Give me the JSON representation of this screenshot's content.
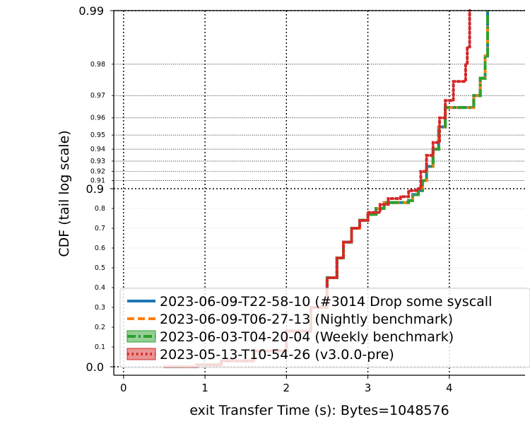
{
  "chart_data": {
    "type": "line",
    "xlabel": "exit Transfer Time (s): Bytes=1048576",
    "ylabel": "CDF (tail log scale)",
    "xlim": [
      -0.12,
      4.93
    ],
    "y_scale": "tail-log",
    "grid": "major dotted, minor dotted on tail",
    "legend_position": "bottom",
    "x_ticks": [
      {
        "value": 0,
        "label": "0"
      },
      {
        "value": 1,
        "label": "1"
      },
      {
        "value": 2,
        "label": "2"
      },
      {
        "value": 3,
        "label": "3"
      },
      {
        "value": 4,
        "label": "4"
      }
    ],
    "y_major_ticks": [
      {
        "value": 0.0,
        "label": "0.0"
      },
      {
        "value": 0.9,
        "label": "0.9"
      },
      {
        "value": 0.99,
        "label": "0.99"
      }
    ],
    "y_minor_ticks": [
      {
        "value": 0.1,
        "label": "0.1"
      },
      {
        "value": 0.2,
        "label": "0.2"
      },
      {
        "value": 0.3,
        "label": "0.3"
      },
      {
        "value": 0.4,
        "label": "0.4"
      },
      {
        "value": 0.5,
        "label": "0.5"
      },
      {
        "value": 0.6,
        "label": "0.6"
      },
      {
        "value": 0.7,
        "label": "0.7"
      },
      {
        "value": 0.8,
        "label": "0.8"
      },
      {
        "value": 0.91,
        "label": "0.91"
      },
      {
        "value": 0.92,
        "label": "0.92"
      },
      {
        "value": 0.93,
        "label": "0.93"
      },
      {
        "value": 0.94,
        "label": "0.94"
      },
      {
        "value": 0.95,
        "label": "0.95"
      },
      {
        "value": 0.96,
        "label": "0.96"
      },
      {
        "value": 0.97,
        "label": "0.97"
      },
      {
        "value": 0.98,
        "label": "0.98"
      }
    ],
    "series": [
      {
        "name": "2023-06-09-T22-58-10 (#3014 Drop some syscall",
        "color": "#1f77b4",
        "style": "solid",
        "legend_patch": false,
        "points": [
          [
            0.5,
            0.0
          ],
          [
            0.9,
            0.01
          ],
          [
            1.2,
            0.03
          ],
          [
            1.6,
            0.08
          ],
          [
            2.0,
            0.18
          ],
          [
            2.3,
            0.3
          ],
          [
            2.5,
            0.45
          ],
          [
            2.62,
            0.55
          ],
          [
            2.7,
            0.63
          ],
          [
            2.8,
            0.7
          ],
          [
            2.9,
            0.74
          ],
          [
            3.0,
            0.77
          ],
          [
            3.1,
            0.8
          ],
          [
            3.2,
            0.83
          ],
          [
            3.5,
            0.84
          ],
          [
            3.55,
            0.87
          ],
          [
            3.62,
            0.89
          ],
          [
            3.67,
            0.91
          ],
          [
            3.72,
            0.925
          ],
          [
            3.8,
            0.94
          ],
          [
            3.87,
            0.955
          ],
          [
            3.95,
            0.965
          ],
          [
            4.3,
            0.97
          ],
          [
            4.38,
            0.976
          ],
          [
            4.44,
            0.982
          ],
          [
            4.47,
            0.99
          ]
        ]
      },
      {
        "name": "2023-06-09-T06-27-13 (Nightly benchmark)",
        "color": "#ff7f0e",
        "style": "dashed",
        "legend_patch": false,
        "points": [
          [
            0.5,
            0.0
          ],
          [
            0.9,
            0.01
          ],
          [
            1.2,
            0.03
          ],
          [
            1.6,
            0.08
          ],
          [
            2.0,
            0.18
          ],
          [
            2.3,
            0.3
          ],
          [
            2.5,
            0.45
          ],
          [
            2.62,
            0.55
          ],
          [
            2.7,
            0.63
          ],
          [
            2.8,
            0.7
          ],
          [
            2.9,
            0.74
          ],
          [
            3.0,
            0.77
          ],
          [
            3.1,
            0.8
          ],
          [
            3.2,
            0.83
          ],
          [
            3.5,
            0.84
          ],
          [
            3.55,
            0.87
          ],
          [
            3.62,
            0.89
          ],
          [
            3.67,
            0.91
          ],
          [
            3.72,
            0.925
          ],
          [
            3.8,
            0.94
          ],
          [
            3.87,
            0.955
          ],
          [
            3.95,
            0.965
          ],
          [
            4.3,
            0.97
          ],
          [
            4.38,
            0.976
          ],
          [
            4.44,
            0.982
          ],
          [
            4.47,
            0.99
          ]
        ]
      },
      {
        "name": "2023-06-03-T04-20-04 (Weekly benchmark)",
        "color": "#2ca02c",
        "style": "dashdot",
        "legend_patch": true,
        "points": [
          [
            0.5,
            0.0
          ],
          [
            0.9,
            0.01
          ],
          [
            1.2,
            0.03
          ],
          [
            1.6,
            0.08
          ],
          [
            2.0,
            0.18
          ],
          [
            2.3,
            0.3
          ],
          [
            2.5,
            0.45
          ],
          [
            2.62,
            0.55
          ],
          [
            2.7,
            0.63
          ],
          [
            2.8,
            0.7
          ],
          [
            2.9,
            0.74
          ],
          [
            3.0,
            0.77
          ],
          [
            3.1,
            0.8
          ],
          [
            3.2,
            0.83
          ],
          [
            3.5,
            0.84
          ],
          [
            3.55,
            0.87
          ],
          [
            3.62,
            0.89
          ],
          [
            3.67,
            0.91
          ],
          [
            3.72,
            0.925
          ],
          [
            3.8,
            0.94
          ],
          [
            3.87,
            0.955
          ],
          [
            3.95,
            0.965
          ],
          [
            4.3,
            0.97
          ],
          [
            4.38,
            0.976
          ],
          [
            4.44,
            0.982
          ],
          [
            4.47,
            0.99
          ]
        ]
      },
      {
        "name": "2023-05-13-T10-54-26 (v3.0.0-pre)",
        "color": "#d62728",
        "style": "dotted",
        "legend_patch": true,
        "points": [
          [
            0.5,
            0.0
          ],
          [
            0.9,
            0.01
          ],
          [
            1.2,
            0.03
          ],
          [
            1.6,
            0.08
          ],
          [
            2.0,
            0.18
          ],
          [
            2.3,
            0.3
          ],
          [
            2.5,
            0.45
          ],
          [
            2.62,
            0.55
          ],
          [
            2.7,
            0.63
          ],
          [
            2.8,
            0.7
          ],
          [
            2.9,
            0.74
          ],
          [
            3.0,
            0.78
          ],
          [
            3.15,
            0.82
          ],
          [
            3.25,
            0.85
          ],
          [
            3.4,
            0.86
          ],
          [
            3.5,
            0.89
          ],
          [
            3.6,
            0.9
          ],
          [
            3.65,
            0.92
          ],
          [
            3.72,
            0.935
          ],
          [
            3.8,
            0.945
          ],
          [
            3.88,
            0.96
          ],
          [
            3.95,
            0.968
          ],
          [
            4.05,
            0.975
          ],
          [
            4.2,
            0.98
          ],
          [
            4.22,
            0.984
          ],
          [
            4.25,
            0.99
          ]
        ]
      }
    ]
  }
}
